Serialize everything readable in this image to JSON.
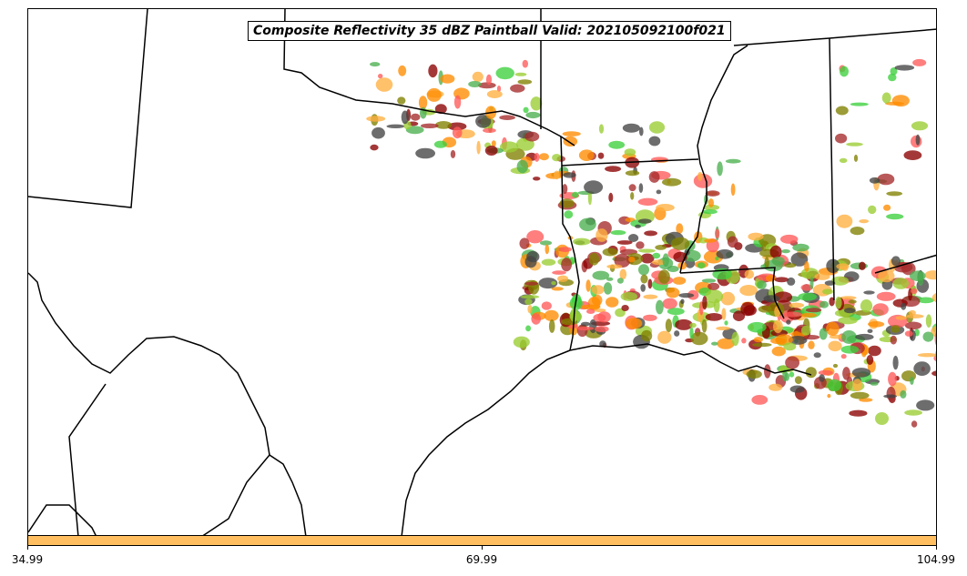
{
  "title": "Composite Reflectivity 35 dBZ Paintball Valid: 202105092100f021",
  "colorbar": {
    "color": "#ffbf60",
    "ticks": [
      "34.99",
      "69.99",
      "104.99"
    ]
  },
  "colors": {
    "boundary": "#000000",
    "paintball": [
      "#ff5a5a",
      "#ffb040",
      "#4caf50",
      "#a52a2a",
      "#808000",
      "#ff8c00",
      "#3cd03c",
      "#8b0000",
      "#444444",
      "#9acd32"
    ]
  }
}
